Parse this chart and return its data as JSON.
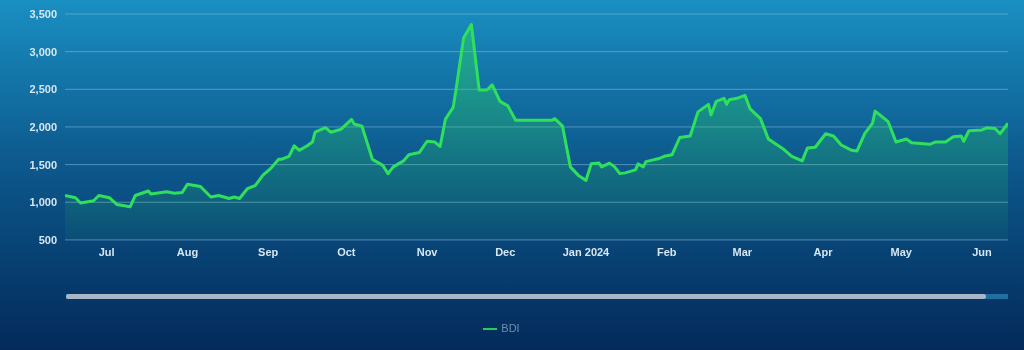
{
  "chart_data": {
    "type": "area",
    "x": [
      "2023-06-15",
      "2023-06-19",
      "2023-06-21",
      "2023-06-26",
      "2023-06-28",
      "2023-07-02",
      "2023-07-05",
      "2023-07-10",
      "2023-07-12",
      "2023-07-17",
      "2023-07-18",
      "2023-07-24",
      "2023-07-27",
      "2023-07-30",
      "2023-08-01",
      "2023-08-06",
      "2023-08-10",
      "2023-08-13",
      "2023-08-17",
      "2023-08-19",
      "2023-08-21",
      "2023-08-24",
      "2023-08-27",
      "2023-08-30",
      "2023-09-02",
      "2023-09-05",
      "2023-09-06",
      "2023-09-09",
      "2023-09-11",
      "2023-09-13",
      "2023-09-16",
      "2023-09-18",
      "2023-09-19",
      "2023-09-23",
      "2023-09-25",
      "2023-09-29",
      "2023-10-03",
      "2023-10-04",
      "2023-10-07",
      "2023-10-11",
      "2023-10-15",
      "2023-10-17",
      "2023-10-19",
      "2023-10-23",
      "2023-10-25",
      "2023-10-29",
      "2023-11-01",
      "2023-11-04",
      "2023-11-06",
      "2023-11-08",
      "2023-11-11",
      "2023-11-12",
      "2023-11-15",
      "2023-11-18",
      "2023-11-21",
      "2023-11-24",
      "2023-11-26",
      "2023-11-29",
      "2023-12-02",
      "2023-12-05",
      "2023-12-19",
      "2023-12-20",
      "2023-12-23",
      "2023-12-26",
      "2023-12-29",
      "2024-01-01",
      "2024-01-03",
      "2024-01-06",
      "2024-01-07",
      "2024-01-10",
      "2024-01-12",
      "2024-01-14",
      "2024-01-16",
      "2024-01-20",
      "2024-01-21",
      "2024-01-23",
      "2024-01-24",
      "2024-01-29",
      "2024-01-31",
      "2024-02-03",
      "2024-02-06",
      "2024-02-10",
      "2024-02-13",
      "2024-02-17",
      "2024-02-18",
      "2024-02-20",
      "2024-02-23",
      "2024-02-24",
      "2024-02-25",
      "2024-02-28",
      "2024-03-02",
      "2024-03-04",
      "2024-03-08",
      "2024-03-11",
      "2024-03-17",
      "2024-03-20",
      "2024-03-24",
      "2024-03-26",
      "2024-03-29",
      "2024-04-02",
      "2024-04-05",
      "2024-04-08",
      "2024-04-12",
      "2024-04-14",
      "2024-04-17",
      "2024-04-20",
      "2024-04-21",
      "2024-04-26",
      "2024-04-29",
      "2024-05-03",
      "2024-05-05",
      "2024-05-12",
      "2024-05-14",
      "2024-05-18",
      "2024-05-21",
      "2024-05-24",
      "2024-05-25",
      "2024-05-27",
      "2024-06-01",
      "2024-06-03",
      "2024-06-06",
      "2024-06-08",
      "2024-06-11"
    ],
    "series": [
      {
        "name": "BDI",
        "color": "#2ee05a",
        "values": [
          1090,
          1060,
          990,
          1020,
          1090,
          1060,
          970,
          940,
          1090,
          1150,
          1110,
          1140,
          1120,
          1130,
          1240,
          1210,
          1070,
          1090,
          1050,
          1070,
          1050,
          1180,
          1220,
          1360,
          1450,
          1570,
          1570,
          1610,
          1750,
          1690,
          1750,
          1800,
          1930,
          1990,
          1930,
          1970,
          2100,
          2040,
          2010,
          1570,
          1490,
          1380,
          1470,
          1550,
          1630,
          1660,
          1810,
          1800,
          1740,
          2100,
          2260,
          2470,
          3180,
          3360,
          2490,
          2490,
          2560,
          2340,
          2280,
          2090,
          2090,
          2110,
          2010,
          1470,
          1360,
          1290,
          1510,
          1520,
          1470,
          1520,
          1470,
          1380,
          1390,
          1430,
          1510,
          1470,
          1540,
          1580,
          1610,
          1630,
          1860,
          1880,
          2200,
          2300,
          2160,
          2340,
          2380,
          2300,
          2360,
          2380,
          2420,
          2240,
          2110,
          1840,
          1700,
          1610,
          1550,
          1720,
          1730,
          1910,
          1880,
          1760,
          1690,
          1680,
          1910,
          2050,
          2210,
          2070,
          1800,
          1840,
          1790,
          1770,
          1800,
          1800,
          1870,
          1880,
          1810,
          1950,
          1960,
          1990,
          1980,
          1910,
          2050
        ]
      }
    ],
    "xlim": [
      "2023-06-15",
      "2024-06-11"
    ],
    "xticks": [
      {
        "value": "2023-07-01",
        "label": "Jul"
      },
      {
        "value": "2023-08-01",
        "label": "Aug"
      },
      {
        "value": "2023-09-01",
        "label": "Sep"
      },
      {
        "value": "2023-10-01",
        "label": "Oct"
      },
      {
        "value": "2023-11-01",
        "label": "Nov"
      },
      {
        "value": "2023-12-01",
        "label": "Dec"
      },
      {
        "value": "2024-01-01",
        "label": "Jan 2024"
      },
      {
        "value": "2024-02-01",
        "label": "Feb"
      },
      {
        "value": "2024-03-01",
        "label": "Mar"
      },
      {
        "value": "2024-04-01",
        "label": "Apr"
      },
      {
        "value": "2024-05-01",
        "label": "May"
      },
      {
        "value": "2024-06-01",
        "label": "Jun"
      }
    ],
    "ylim": [
      500,
      3500
    ],
    "yticks": [
      {
        "value": 500,
        "label": "500"
      },
      {
        "value": 1000,
        "label": "1,000"
      },
      {
        "value": 1500,
        "label": "1,500"
      },
      {
        "value": 2000,
        "label": "2,000"
      },
      {
        "value": 2500,
        "label": "2,500"
      },
      {
        "value": 3000,
        "label": "3,000"
      },
      {
        "value": 3500,
        "label": "3,500"
      }
    ],
    "grid": "y",
    "legend": "bottom",
    "marker": "none",
    "line_style": "solid"
  }
}
